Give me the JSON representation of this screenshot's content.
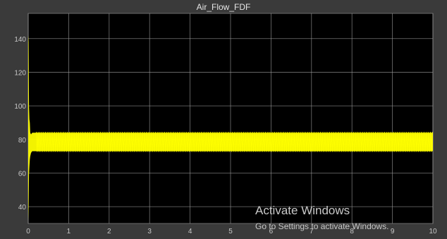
{
  "window": {
    "title": "Air_Flow_FDF"
  },
  "colors": {
    "frame_bg": "#3a3a3a",
    "plot_bg": "#000000",
    "grid": "#9a9a9a",
    "tick_text": "#c8c8c8",
    "title_text": "#e6e6e6",
    "signal": "#ffff00",
    "watermark": "#c9c9c9"
  },
  "watermark": {
    "line1": "Activate Windows",
    "line2": "Go to Settings to activate Windows."
  },
  "chart_data": {
    "type": "line",
    "title": "Air_Flow_FDF",
    "xlabel": "",
    "ylabel": "",
    "xlim": [
      0,
      10
    ],
    "ylim": [
      30,
      155
    ],
    "xticks": [
      0,
      1,
      2,
      3,
      4,
      5,
      6,
      7,
      8,
      9,
      10
    ],
    "yticks": [
      40,
      60,
      80,
      100,
      120,
      140
    ],
    "grid": true,
    "legend": "none",
    "series": [
      {
        "color": "#ffff00",
        "x": [
          0,
          0.01,
          0.02,
          0.03,
          0.04,
          0.05,
          0.07,
          0.1,
          0.15,
          0.2,
          1,
          2,
          3,
          4,
          5,
          6,
          7,
          8,
          9,
          10
        ],
        "y_upper": [
          142,
          138,
          100,
          92,
          90,
          84,
          83,
          84,
          84,
          84,
          84,
          84,
          84,
          84,
          84,
          84,
          84,
          84,
          84,
          84
        ],
        "y_lower": [
          32,
          40,
          59,
          64,
          68,
          70,
          72,
          73,
          73,
          73,
          73,
          73,
          73,
          73,
          73,
          73,
          73,
          73,
          73,
          73
        ],
        "mean": 78
      }
    ]
  }
}
